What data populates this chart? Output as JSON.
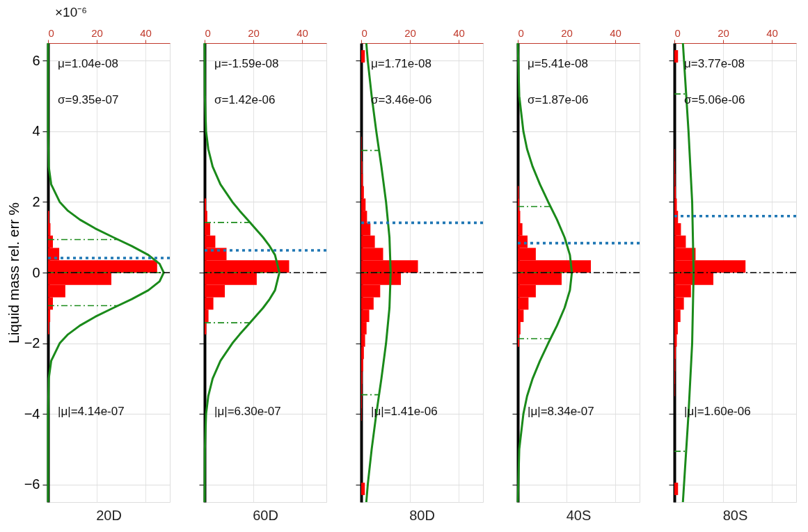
{
  "chart_data": [
    {
      "type": "histogram",
      "orientation": "horizontal",
      "color": "#ff0000",
      "xlabel": "20D",
      "ylabel": "Liquid mass rel. err %",
      "xlim": [
        0,
        50
      ],
      "xticks": [
        0,
        20,
        40
      ],
      "ylim": [
        -6.5,
        6.5
      ],
      "yticks": [
        -6,
        -4,
        -2,
        0,
        2,
        4,
        6
      ],
      "grid": true,
      "bins": [
        -1.75,
        -1.4,
        -1.05,
        -0.7,
        -0.35,
        0,
        0.35,
        0.7,
        1.05,
        1.4,
        1.75
      ],
      "values": [
        0.5,
        0.9,
        2.0,
        7.1,
        26.0,
        44.8,
        4.6,
        2.0,
        1.0,
        0.5
      ],
      "series": [
        {
          "type": "line",
          "color": "#1a8a1a",
          "line_style": "solid",
          "x": [
            -6.5,
            -4,
            -3,
            -2.5,
            -2,
            -1.75,
            -1.5,
            -1.25,
            -1,
            -0.75,
            -0.5,
            -0.25,
            0,
            0.25,
            0.5,
            0.75,
            1,
            1.25,
            1.5,
            1.75,
            2,
            2.5,
            3,
            4,
            6.5
          ],
          "values": [
            0,
            0,
            0.3,
            1.3,
            4.8,
            8.2,
            13.1,
            19.4,
            26.8,
            34.4,
            41.2,
            45.8,
            47.5,
            45.8,
            41.2,
            34.4,
            26.8,
            19.4,
            13.1,
            8.2,
            4.8,
            1.3,
            0.3,
            0,
            0
          ]
        },
        {
          "type": "line",
          "color": "#1a8a1a",
          "line_style": "dashed",
          "x": [
            0.935,
            0.935
          ],
          "values": [
            0,
            28.8
          ]
        },
        {
          "type": "line",
          "color": "#1a8a1a",
          "line_style": "dashed",
          "x": [
            0,
            0
          ],
          "values": [
            0,
            47.5
          ]
        },
        {
          "type": "line",
          "color": "#1a8a1a",
          "line_style": "dashed",
          "x": [
            -0.935,
            -0.935
          ],
          "values": [
            0,
            28.8
          ]
        }
      ],
      "ref_lines": [
        {
          "axis": "y",
          "value": 0,
          "color": "#000000",
          "line_style": "dashed"
        },
        {
          "axis": "y",
          "value": 0.414,
          "color": "#1f77b4",
          "line_style": "dotted"
        }
      ],
      "annotations": [
        "μ=1.04e-08",
        "σ=9.35e-07",
        "|μ|=4.14e-07",
        "×10⁻⁶"
      ]
    },
    {
      "type": "histogram",
      "orientation": "horizontal",
      "color": "#ff0000",
      "xlabel": "60D",
      "xlim": [
        0,
        50
      ],
      "xticks": [
        0,
        20,
        40
      ],
      "ylim": [
        -6.5,
        6.5
      ],
      "yticks": [
        -6,
        -4,
        -2,
        0,
        2,
        4,
        6
      ],
      "grid": true,
      "tick_labels": "x",
      "bins": [
        -1.75,
        -1.4,
        -1.05,
        -0.7,
        -0.35,
        0,
        0.35,
        0.7,
        1.05,
        1.4,
        1.75,
        2.1
      ],
      "values": [
        0.7,
        1.6,
        3.6,
        8.3,
        21.4,
        34.7,
        9.0,
        4.4,
        2.3,
        1.1,
        0.6
      ],
      "series": [
        {
          "type": "line",
          "color": "#1a8a1a",
          "line_style": "solid",
          "x": [
            -6.5,
            -5,
            -4,
            -3.5,
            -3,
            -2.5,
            -2,
            -1.75,
            -1.5,
            -1.25,
            -1,
            -0.75,
            -0.5,
            0,
            0.5,
            0.75,
            1,
            1.25,
            1.5,
            1.75,
            2,
            2.5,
            3,
            3.5,
            4,
            5,
            6.5
          ],
          "values": [
            0,
            0.1,
            0.6,
            1.5,
            3.3,
            6.5,
            11.4,
            14.4,
            17.6,
            20.8,
            24.0,
            26.7,
            28.9,
            30.7,
            28.9,
            26.7,
            24.0,
            20.8,
            17.6,
            14.4,
            11.4,
            6.5,
            3.3,
            1.5,
            0.6,
            0.1,
            0
          ]
        },
        {
          "type": "line",
          "color": "#1a8a1a",
          "line_style": "dashed",
          "x": [
            1.42,
            1.42
          ],
          "values": [
            0,
            18.6
          ]
        },
        {
          "type": "line",
          "color": "#1a8a1a",
          "line_style": "dashed",
          "x": [
            0,
            0
          ],
          "values": [
            0,
            30.7
          ]
        },
        {
          "type": "line",
          "color": "#1a8a1a",
          "line_style": "dashed",
          "x": [
            -1.42,
            -1.42
          ],
          "values": [
            0,
            18.6
          ]
        }
      ],
      "ref_lines": [
        {
          "axis": "y",
          "value": 0,
          "color": "#000000",
          "line_style": "dashed"
        },
        {
          "axis": "y",
          "value": 0.63,
          "color": "#1f77b4",
          "line_style": "dotted"
        }
      ],
      "annotations": [
        "μ=-1.59e-08",
        "σ=1.42e-06",
        "|μ|=6.30e-07"
      ]
    },
    {
      "type": "histogram",
      "orientation": "horizontal",
      "color": "#ff0000",
      "xlabel": "80D",
      "xlim": [
        0,
        50
      ],
      "xticks": [
        0,
        20,
        40
      ],
      "ylim": [
        -6.5,
        6.5
      ],
      "yticks": [
        -6,
        -4,
        -2,
        0,
        2,
        4,
        6
      ],
      "grid": true,
      "tick_labels": "x",
      "bins": [
        -6.3,
        -5.95,
        -5.6,
        -5.25,
        -4.9,
        -4.55,
        -4.2,
        -3.85,
        -3.5,
        -3.15,
        -2.8,
        -2.45,
        -2.1,
        -1.75,
        -1.4,
        -1.05,
        -0.7,
        -0.35,
        0,
        0.35,
        0.7,
        1.05,
        1.4,
        1.75,
        2.1,
        2.45,
        2.8,
        3.15,
        3.5,
        3.85,
        4.2,
        4.55,
        4.9,
        5.25,
        5.6,
        5.95,
        6.3
      ],
      "values": [
        1.5,
        0,
        0,
        0,
        0,
        0,
        0.2,
        0.3,
        0.4,
        0.5,
        0.8,
        1.1,
        1.6,
        2.2,
        3.3,
        5.1,
        7.8,
        16.3,
        23.3,
        9.0,
        5.6,
        3.8,
        2.4,
        1.8,
        1.1,
        0.7,
        0.5,
        0.3,
        0.2,
        0,
        0,
        0,
        0,
        0,
        0,
        1.5
      ],
      "series": [
        {
          "type": "line",
          "color": "#1a8a1a",
          "line_style": "solid",
          "x": [
            -6.5,
            -6,
            -5,
            -4,
            -3,
            -2,
            -1,
            0,
            1,
            2,
            3,
            4,
            5,
            6,
            6.5
          ],
          "values": [
            2.1,
            2.7,
            4.3,
            6.2,
            8.3,
            10.2,
            11.6,
            12.1,
            11.6,
            10.2,
            8.3,
            6.2,
            4.3,
            2.7,
            2.1
          ]
        },
        {
          "type": "line",
          "color": "#1a8a1a",
          "line_style": "dashed",
          "x": [
            3.46,
            3.46
          ],
          "values": [
            0,
            7.3
          ]
        },
        {
          "type": "line",
          "color": "#1a8a1a",
          "line_style": "dashed",
          "x": [
            0,
            0
          ],
          "values": [
            0,
            12.1
          ]
        },
        {
          "type": "line",
          "color": "#1a8a1a",
          "line_style": "dashed",
          "x": [
            -3.46,
            -3.46
          ],
          "values": [
            0,
            7.3
          ]
        }
      ],
      "ref_lines": [
        {
          "axis": "y",
          "value": 0,
          "color": "#000000",
          "line_style": "dashed"
        },
        {
          "axis": "y",
          "value": 1.41,
          "color": "#1f77b4",
          "line_style": "dotted"
        }
      ],
      "annotations": [
        "μ=1.71e-08",
        "σ=3.46e-06",
        "|μ|=1.41e-06"
      ]
    },
    {
      "type": "histogram",
      "orientation": "horizontal",
      "color": "#ff0000",
      "xlabel": "40S",
      "xlim": [
        0,
        50
      ],
      "xticks": [
        0,
        20,
        40
      ],
      "ylim": [
        -6.5,
        6.5
      ],
      "yticks": [
        -6,
        -4,
        -2,
        0,
        2,
        4,
        6
      ],
      "grid": true,
      "tick_labels": "x",
      "bins": [
        -2.1,
        -1.75,
        -1.4,
        -1.05,
        -0.7,
        -0.35,
        0,
        0.35,
        0.7,
        1.05,
        1.4,
        1.75,
        2.1,
        2.45
      ],
      "values": [
        0.6,
        1.1,
        2.4,
        4.4,
        7.4,
        18.0,
        30.0,
        7.4,
        4.0,
        1.9,
        1.0,
        0.6,
        0.4
      ],
      "series": [
        {
          "type": "line",
          "color": "#1a8a1a",
          "line_style": "solid",
          "x": [
            -6.5,
            -5,
            -4,
            -3.5,
            -3,
            -2.5,
            -2,
            -1.5,
            -1,
            -0.5,
            0,
            0.5,
            1,
            1.5,
            2,
            2.5,
            3,
            3.5,
            4,
            5,
            6.5
          ],
          "values": [
            0,
            0.6,
            2.3,
            3.8,
            6.1,
            9.1,
            12.5,
            16.1,
            19.2,
            21.4,
            22.2,
            21.4,
            19.2,
            16.1,
            12.5,
            9.1,
            6.1,
            3.8,
            2.3,
            0.6,
            0
          ]
        },
        {
          "type": "line",
          "color": "#1a8a1a",
          "line_style": "dashed",
          "x": [
            1.87,
            1.87
          ],
          "values": [
            0,
            13.5
          ]
        },
        {
          "type": "line",
          "color": "#1a8a1a",
          "line_style": "dashed",
          "x": [
            0,
            0
          ],
          "values": [
            0,
            22.2
          ]
        },
        {
          "type": "line",
          "color": "#1a8a1a",
          "line_style": "dashed",
          "x": [
            -1.87,
            -1.87
          ],
          "values": [
            0,
            13.5
          ]
        }
      ],
      "ref_lines": [
        {
          "axis": "y",
          "value": 0,
          "color": "#000000",
          "line_style": "dashed"
        },
        {
          "axis": "y",
          "value": 0.834,
          "color": "#1f77b4",
          "line_style": "dotted"
        }
      ],
      "annotations": [
        "μ=5.41e-08",
        "σ=1.87e-06",
        "|μ|=8.34e-07"
      ]
    },
    {
      "type": "histogram",
      "orientation": "horizontal",
      "color": "#ff0000",
      "xlabel": "80S",
      "xlim": [
        0,
        50
      ],
      "xticks": [
        0,
        20,
        40
      ],
      "ylim": [
        -6.5,
        6.5
      ],
      "yticks": [
        -6,
        -4,
        -2,
        0,
        2,
        4,
        6
      ],
      "grid": true,
      "tick_labels": "x",
      "bins": [
        -6.3,
        -5.95,
        -5.6,
        -5.25,
        -4.9,
        -4.55,
        -4.2,
        -3.85,
        -3.5,
        -3.15,
        -2.8,
        -2.45,
        -2.1,
        -1.75,
        -1.4,
        -1.05,
        -0.7,
        -0.35,
        0,
        0.35,
        0.7,
        1.05,
        1.4,
        1.75,
        2.1,
        2.45,
        2.8,
        3.15,
        3.5,
        3.85,
        4.2,
        4.55,
        4.9,
        5.25,
        5.6,
        5.95,
        6.3
      ],
      "values": [
        1.5,
        0,
        0,
        0,
        0,
        0,
        0,
        0,
        0.2,
        0.3,
        0.4,
        0.6,
        1.0,
        1.4,
        2.5,
        3.9,
        6.8,
        16.0,
        29.2,
        8.7,
        4.7,
        2.7,
        1.5,
        1.0,
        0.6,
        0.4,
        0.3,
        0.2,
        0,
        0,
        0,
        0,
        0,
        0,
        0,
        1.5
      ],
      "series": [
        {
          "type": "line",
          "color": "#1a8a1a",
          "line_style": "solid",
          "x": [
            -6.5,
            -4,
            -2,
            0,
            2,
            4,
            6.5
          ],
          "values": [
            3.5,
            5.8,
            7.3,
            7.9,
            7.3,
            5.8,
            3.5
          ]
        },
        {
          "type": "line",
          "color": "#1a8a1a",
          "line_style": "dashed",
          "x": [
            5.06,
            5.06
          ],
          "values": [
            0,
            4.8
          ]
        },
        {
          "type": "line",
          "color": "#1a8a1a",
          "line_style": "dashed",
          "x": [
            0,
            0
          ],
          "values": [
            0,
            7.9
          ]
        },
        {
          "type": "line",
          "color": "#1a8a1a",
          "line_style": "dashed",
          "x": [
            -5.06,
            -5.06
          ],
          "values": [
            0,
            4.8
          ]
        }
      ],
      "ref_lines": [
        {
          "axis": "y",
          "value": 0,
          "color": "#000000",
          "line_style": "dashed"
        },
        {
          "axis": "y",
          "value": 1.6,
          "color": "#1f77b4",
          "line_style": "dotted"
        }
      ],
      "annotations": [
        "μ=3.77e-08",
        "σ=5.06e-06",
        "|μ|=1.60e-06"
      ]
    }
  ]
}
